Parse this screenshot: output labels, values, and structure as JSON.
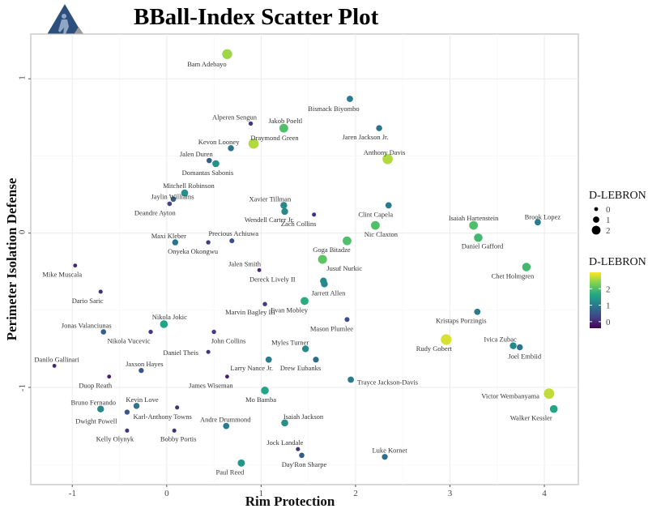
{
  "chart_data": {
    "type": "scatter",
    "title": "BBall-Index Scatter Plot",
    "xlabel": "Rim Protection",
    "ylabel": "Perimeter Isolation Defense",
    "xlim": [
      -1.44,
      4.36
    ],
    "ylim": [
      -1.63,
      1.29
    ],
    "xticks": [
      -1,
      0,
      1,
      2,
      3,
      4
    ],
    "yticks": [
      -1,
      0,
      1
    ],
    "grid": true,
    "size_legend": {
      "title": "D-LEBRON",
      "values": [
        0,
        1,
        2
      ],
      "placement": "right"
    },
    "color_legend": {
      "title": "D-LEBRON",
      "ticks": [
        0,
        1,
        2
      ],
      "range": [
        -0.4,
        3.0
      ],
      "palette": [
        "#440154",
        "#414487",
        "#2a788e",
        "#22a884",
        "#7ad151",
        "#fde725"
      ],
      "placement": "right"
    },
    "points": [
      {
        "name": "Bam Adebayo",
        "x": 0.64,
        "y": 1.16,
        "dlebron": 2.5
      },
      {
        "name": "Bismack Biyombo",
        "x": 1.94,
        "y": 0.87,
        "dlebron": 1.0
      },
      {
        "name": "Alperen Sengun",
        "x": 0.89,
        "y": 0.71,
        "dlebron": 0.2
      },
      {
        "name": "Jakob Poeltl",
        "x": 1.24,
        "y": 0.68,
        "dlebron": 2.0
      },
      {
        "name": "Jaren Jackson Jr.",
        "x": 2.25,
        "y": 0.68,
        "dlebron": 0.9
      },
      {
        "name": "Draymond Green",
        "x": 0.92,
        "y": 0.58,
        "dlebron": 2.6
      },
      {
        "name": "Kevon Looney",
        "x": 0.68,
        "y": 0.55,
        "dlebron": 0.9
      },
      {
        "name": "Anthony Davis",
        "x": 2.34,
        "y": 0.48,
        "dlebron": 2.6
      },
      {
        "name": "Jalen Duren",
        "x": 0.45,
        "y": 0.47,
        "dlebron": 0.6
      },
      {
        "name": "Domantas Sabonis",
        "x": 0.52,
        "y": 0.45,
        "dlebron": 1.3
      },
      {
        "name": "Mitchell Robinson",
        "x": 0.19,
        "y": 0.26,
        "dlebron": 1.3
      },
      {
        "name": "Jaylin Williams",
        "x": 0.07,
        "y": 0.22,
        "dlebron": 0.6
      },
      {
        "name": "Deandre Ayton",
        "x": 0.03,
        "y": 0.19,
        "dlebron": 0.3
      },
      {
        "name": "Xavier Tillman",
        "x": 1.24,
        "y": 0.18,
        "dlebron": 1.2
      },
      {
        "name": "Wendell Carter Jr.",
        "x": 1.25,
        "y": 0.14,
        "dlebron": 1.2
      },
      {
        "name": "Clint Capela",
        "x": 2.35,
        "y": 0.18,
        "dlebron": 1.0
      },
      {
        "name": "Zach Collins",
        "x": 1.56,
        "y": 0.12,
        "dlebron": 0.1
      },
      {
        "name": "Nic Claxton",
        "x": 2.21,
        "y": 0.05,
        "dlebron": 2.0
      },
      {
        "name": "Isaiah Hartenstein",
        "x": 3.25,
        "y": 0.05,
        "dlebron": 2.0
      },
      {
        "name": "Brook Lopez",
        "x": 3.93,
        "y": 0.07,
        "dlebron": 1.0
      },
      {
        "name": "Daniel Gafford",
        "x": 3.3,
        "y": -0.03,
        "dlebron": 1.9
      },
      {
        "name": "Goga Bitadze",
        "x": 1.91,
        "y": -0.05,
        "dlebron": 2.0
      },
      {
        "name": "Maxi Kleber",
        "x": 0.09,
        "y": -0.06,
        "dlebron": 0.9
      },
      {
        "name": "Onyeka Okongwu",
        "x": 0.44,
        "y": -0.06,
        "dlebron": 0.2
      },
      {
        "name": "Precious Achiuwa",
        "x": 0.69,
        "y": -0.05,
        "dlebron": 0.4
      },
      {
        "name": "Jusuf Nurkic",
        "x": 1.65,
        "y": -0.17,
        "dlebron": 2.1
      },
      {
        "name": "Chet Holmgren",
        "x": 3.81,
        "y": -0.22,
        "dlebron": 1.9
      },
      {
        "name": "Mike Muscala",
        "x": -0.97,
        "y": -0.21,
        "dlebron": 0.0
      },
      {
        "name": "Jalen Smith",
        "x": 0.98,
        "y": -0.24,
        "dlebron": 0.0
      },
      {
        "name": "Dereck Lively II",
        "x": 1.66,
        "y": -0.31,
        "dlebron": 1.2
      },
      {
        "name": "Jarrett Allen",
        "x": 1.67,
        "y": -0.33,
        "dlebron": 1.2
      },
      {
        "name": "Dario Saric",
        "x": -0.7,
        "y": -0.38,
        "dlebron": 0.1
      },
      {
        "name": "Evan Mobley",
        "x": 1.46,
        "y": -0.44,
        "dlebron": 1.7
      },
      {
        "name": "Marvin Bagley III",
        "x": 1.04,
        "y": -0.46,
        "dlebron": 0.2
      },
      {
        "name": "Kristaps Porzingis",
        "x": 3.29,
        "y": -0.51,
        "dlebron": 1.0
      },
      {
        "name": "Mason Plumlee",
        "x": 1.91,
        "y": -0.56,
        "dlebron": 0.4
      },
      {
        "name": "Nikola Jokic",
        "x": -0.03,
        "y": -0.59,
        "dlebron": 1.6
      },
      {
        "name": "Jonas Valanciunas",
        "x": -0.67,
        "y": -0.64,
        "dlebron": 0.6
      },
      {
        "name": "Nikola Vucevic",
        "x": -0.17,
        "y": -0.64,
        "dlebron": 0.2
      },
      {
        "name": "John Collins",
        "x": 0.5,
        "y": -0.64,
        "dlebron": 0.2
      },
      {
        "name": "Rudy Gobert",
        "x": 2.96,
        "y": -0.69,
        "dlebron": 2.8
      },
      {
        "name": "Ivica Zubac",
        "x": 3.67,
        "y": -0.73,
        "dlebron": 1.2
      },
      {
        "name": "Joel Embiid",
        "x": 3.74,
        "y": -0.74,
        "dlebron": 0.9
      },
      {
        "name": "Myles Turner",
        "x": 1.47,
        "y": -0.75,
        "dlebron": 1.2
      },
      {
        "name": "Daniel Theis",
        "x": 0.44,
        "y": -0.77,
        "dlebron": 0.1
      },
      {
        "name": "Larry Nance Jr.",
        "x": 1.08,
        "y": -0.82,
        "dlebron": 1.0
      },
      {
        "name": "Drew Eubanks",
        "x": 1.58,
        "y": -0.82,
        "dlebron": 0.8
      },
      {
        "name": "Danilo Gallinari",
        "x": -1.19,
        "y": -0.86,
        "dlebron": 0.0
      },
      {
        "name": "Jaxson Hayes",
        "x": -0.27,
        "y": -0.89,
        "dlebron": 0.5
      },
      {
        "name": "Trayce Jackson-Davis",
        "x": 1.95,
        "y": -0.95,
        "dlebron": 1.0
      },
      {
        "name": "Duop Reath",
        "x": -0.61,
        "y": -0.93,
        "dlebron": -0.1
      },
      {
        "name": "James Wiseman",
        "x": 0.64,
        "y": -0.93,
        "dlebron": -0.1
      },
      {
        "name": "Victor Wembanyama",
        "x": 4.05,
        "y": -1.04,
        "dlebron": 2.7
      },
      {
        "name": "Mo Bamba",
        "x": 1.04,
        "y": -1.02,
        "dlebron": 1.6
      },
      {
        "name": "Kevin Love",
        "x": -0.32,
        "y": -1.12,
        "dlebron": 0.9
      },
      {
        "name": "Bruno Fernando",
        "x": -0.7,
        "y": -1.14,
        "dlebron": 1.2
      },
      {
        "name": "Karl-Anthony Towns",
        "x": 0.11,
        "y": -1.13,
        "dlebron": 0.1
      },
      {
        "name": "Walker Kessler",
        "x": 4.1,
        "y": -1.14,
        "dlebron": 1.6
      },
      {
        "name": "Dwight Powell",
        "x": -0.42,
        "y": -1.16,
        "dlebron": 0.5
      },
      {
        "name": "Isaiah Jackson",
        "x": 1.25,
        "y": -1.23,
        "dlebron": 1.3
      },
      {
        "name": "Andre Drummond",
        "x": 0.63,
        "y": -1.25,
        "dlebron": 1.0
      },
      {
        "name": "Kelly Olynyk",
        "x": -0.42,
        "y": -1.28,
        "dlebron": 0.1
      },
      {
        "name": "Bobby Portis",
        "x": 0.08,
        "y": -1.28,
        "dlebron": 0.1
      },
      {
        "name": "Jock Landale",
        "x": 1.39,
        "y": -1.4,
        "dlebron": 0.1
      },
      {
        "name": "Day'Ron Sharpe",
        "x": 1.43,
        "y": -1.44,
        "dlebron": 0.6
      },
      {
        "name": "Luke Kornet",
        "x": 2.31,
        "y": -1.45,
        "dlebron": 0.8
      },
      {
        "name": "Paul Reed",
        "x": 0.79,
        "y": -1.49,
        "dlebron": 1.4
      }
    ]
  }
}
